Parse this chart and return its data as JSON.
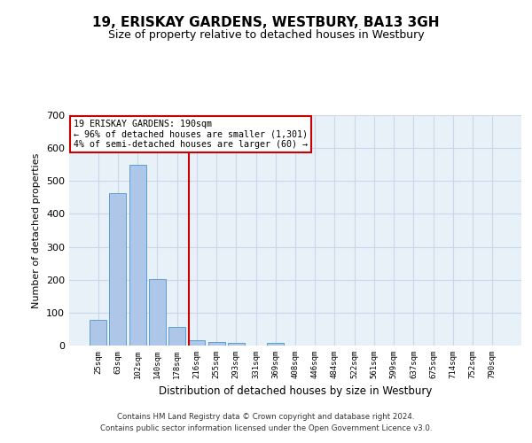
{
  "title": "19, ERISKAY GARDENS, WESTBURY, BA13 3GH",
  "subtitle": "Size of property relative to detached houses in Westbury",
  "xlabel": "Distribution of detached houses by size in Westbury",
  "ylabel": "Number of detached properties",
  "categories": [
    "25sqm",
    "63sqm",
    "102sqm",
    "140sqm",
    "178sqm",
    "216sqm",
    "255sqm",
    "293sqm",
    "331sqm",
    "369sqm",
    "408sqm",
    "446sqm",
    "484sqm",
    "522sqm",
    "561sqm",
    "599sqm",
    "637sqm",
    "675sqm",
    "714sqm",
    "752sqm",
    "790sqm"
  ],
  "bar_heights": [
    78,
    462,
    549,
    203,
    57,
    15,
    10,
    9,
    0,
    8,
    0,
    0,
    0,
    0,
    0,
    0,
    0,
    0,
    0,
    0,
    0
  ],
  "bar_color": "#aec6e8",
  "bar_edge_color": "#5a9fd4",
  "vline_x_index": 4.6,
  "vline_color": "#cc0000",
  "annotation_text": "19 ERISKAY GARDENS: 190sqm\n← 96% of detached houses are smaller (1,301)\n4% of semi-detached houses are larger (60) →",
  "annotation_box_color": "#cc0000",
  "ylim": [
    0,
    700
  ],
  "yticks": [
    0,
    100,
    200,
    300,
    400,
    500,
    600,
    700
  ],
  "grid_color": "#c8d8e8",
  "bg_color": "#e8f0f8",
  "footer_line1": "Contains HM Land Registry data © Crown copyright and database right 2024.",
  "footer_line2": "Contains public sector information licensed under the Open Government Licence v3.0."
}
